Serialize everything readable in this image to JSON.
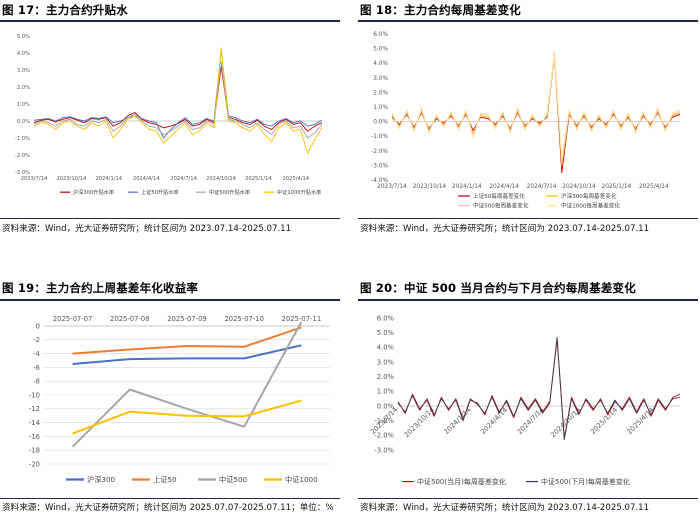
{
  "panels": [
    {
      "title": "图 17：主力合约升贴水",
      "source": "资料来源：Wind，光大证券研究所；统计区间为 2023.07.14-2025.07.11"
    },
    {
      "title": "图 18：主力合约每周基差变化",
      "source": "资料来源：Wind，光大证券研究所；统计区间为 2023.07.14-2025.07.11"
    },
    {
      "title": "图 19：主力合约上周基差年化收益率",
      "source": "资料来源：Wind，光大证券研究所；统计区间为 2025.07.07-2025.07.11；单位：%"
    },
    {
      "title": "图 20：中证 500 当月合约与下月合约每周基差变化",
      "source": "资料来源：Wind，光大证券研究所；统计区间为 2023.07.14-2025.07.11"
    }
  ],
  "chart_data": [
    {
      "type": "line",
      "title": "图 17：主力合约升贴水",
      "yticks": [
        "5.0%",
        "4.0%",
        "3.0%",
        "2.0%",
        "1.0%",
        "0.0%",
        "-1.0%",
        "-2.0%",
        "-3.0%"
      ],
      "ylim": [
        -3,
        5
      ],
      "xticks": [
        "2023/7/14",
        "2023/10/14",
        "2024/1/14",
        "2024/4/14",
        "2024/7/14",
        "2024/10/14",
        "2025/1/14",
        "2025/4/14"
      ],
      "legend_position": "bottom",
      "colors": {
        "沪深300升贴水率": "#c00000",
        "上证50升贴水率": "#4472c4",
        "中证500升贴水率": "#a5a5a5",
        "中证1000升贴水率": "#ffc000"
      },
      "series": [
        {
          "name": "沪深300升贴水率",
          "values": [
            -0.1,
            0.05,
            0.1,
            -0.05,
            0.1,
            0.2,
            0.05,
            -0.1,
            0.15,
            0.1,
            0.2,
            -0.3,
            -0.1,
            0.3,
            0.5,
            0.1,
            -0.1,
            -0.2,
            -0.4,
            -0.3,
            -0.15,
            0.1,
            -0.3,
            -0.2,
            0.1,
            -0.1,
            3.2,
            0.2,
            0.1,
            -0.1,
            -0.2,
            0.05,
            -0.3,
            -0.5,
            -0.1,
            0.1,
            -0.2,
            -0.1,
            -0.6,
            -0.3,
            -0.1
          ]
        },
        {
          "name": "上证50升贴水率",
          "values": [
            0.05,
            0.1,
            0.15,
            0.0,
            0.2,
            0.25,
            0.1,
            0.0,
            0.2,
            0.15,
            0.25,
            -0.1,
            0.0,
            0.2,
            0.3,
            0.15,
            0.0,
            -0.1,
            -1.0,
            -0.5,
            -0.1,
            0.2,
            -0.2,
            -0.1,
            0.15,
            0.0,
            4.2,
            0.3,
            0.2,
            0.0,
            -0.1,
            0.1,
            -0.2,
            -0.3,
            0.0,
            0.15,
            -0.1,
            0.0,
            -0.3,
            -0.2,
            0.05
          ]
        },
        {
          "name": "中证500升贴水率",
          "values": [
            -0.2,
            0.0,
            -0.1,
            -0.3,
            0.0,
            0.1,
            -0.2,
            -0.3,
            0.0,
            -0.1,
            0.1,
            -0.6,
            -0.3,
            0.2,
            0.4,
            0.0,
            -0.3,
            -0.4,
            -0.8,
            -0.6,
            -0.3,
            0.0,
            -0.5,
            -0.4,
            0.0,
            -0.2,
            3.5,
            0.1,
            0.0,
            -0.2,
            -0.4,
            -0.1,
            -0.5,
            -0.8,
            -0.2,
            0.0,
            -0.4,
            -0.3,
            -1.0,
            -0.7,
            -0.2
          ]
        },
        {
          "name": "中证1000升贴水率",
          "values": [
            -0.3,
            -0.1,
            -0.2,
            -0.5,
            -0.1,
            0.0,
            -0.3,
            -0.5,
            -0.1,
            -0.3,
            0.0,
            -1.0,
            -0.5,
            0.1,
            0.3,
            -0.1,
            -0.5,
            -0.6,
            -1.3,
            -0.9,
            -0.5,
            -0.1,
            -0.8,
            -0.6,
            -0.1,
            -0.4,
            4.3,
            0.0,
            -0.1,
            -0.4,
            -0.6,
            -0.2,
            -0.8,
            -1.2,
            -0.4,
            -0.1,
            -0.6,
            -0.5,
            -1.9,
            -1.1,
            -0.4
          ]
        }
      ]
    },
    {
      "type": "line",
      "title": "图 18：主力合约每周基差变化",
      "yticks": [
        "6.0%",
        "5.0%",
        "4.0%",
        "3.0%",
        "2.0%",
        "1.0%",
        "0.0%",
        "-1.0%",
        "-2.0%",
        "-3.0%",
        "-4.0%"
      ],
      "ylim": [
        -4,
        6
      ],
      "xticks": [
        "2023/7/14",
        "2023/10/14",
        "2024/1/14",
        "2024/4/14",
        "2024/7/14",
        "2024/10/14",
        "2025/1/14",
        "2025/4/14"
      ],
      "legend_position": "bottom-left",
      "colors": {
        "上证50每周基差变化": "#c00000",
        "沪深300每周基差变化": "#ffc000",
        "中证500每周基差变化": "#f4b6c2",
        "中证1000每周基差变化": "#ffe699"
      },
      "series": [
        {
          "name": "上证50每周基差变化",
          "values": [
            0.3,
            -0.2,
            0.5,
            -0.4,
            0.6,
            -0.5,
            0.2,
            -0.1,
            0.4,
            -0.3,
            0.5,
            -0.6,
            0.3,
            0.2,
            -0.2,
            0.4,
            -0.5,
            0.6,
            -0.3,
            0.2,
            -0.1,
            0.3,
            4.5,
            -3.5,
            0.5,
            -0.3,
            0.4,
            -0.4,
            0.2,
            -0.2,
            0.5,
            -0.3,
            0.3,
            -0.5,
            0.4,
            -0.2,
            0.6,
            -0.4,
            0.3,
            0.5
          ]
        },
        {
          "name": "沪深300每周基差变化",
          "values": [
            0.4,
            -0.3,
            0.6,
            -0.5,
            0.7,
            -0.6,
            0.3,
            -0.2,
            0.5,
            -0.4,
            0.6,
            -0.8,
            0.4,
            0.3,
            -0.3,
            0.5,
            -0.6,
            0.7,
            -0.4,
            0.3,
            -0.2,
            0.4,
            4.7,
            -3.0,
            0.6,
            -0.4,
            0.5,
            -0.5,
            0.3,
            -0.3,
            0.6,
            -0.4,
            0.4,
            -0.6,
            0.5,
            -0.3,
            0.7,
            -0.5,
            0.4,
            0.6
          ]
        },
        {
          "name": "中证500每周基差变化",
          "values": [
            0.5,
            -0.4,
            0.7,
            -0.6,
            0.8,
            -0.7,
            0.4,
            -0.3,
            0.6,
            -0.5,
            0.7,
            -0.9,
            0.5,
            0.4,
            -0.4,
            0.6,
            -0.7,
            0.8,
            -0.5,
            0.4,
            -0.3,
            0.5,
            4.6,
            -2.8,
            0.7,
            -0.5,
            0.6,
            -0.6,
            0.4,
            -0.4,
            0.7,
            -0.5,
            0.5,
            -0.7,
            0.6,
            -0.4,
            0.8,
            -0.6,
            0.5,
            0.7
          ]
        },
        {
          "name": "中证1000每周基差变化",
          "values": [
            0.6,
            -0.5,
            0.8,
            -0.7,
            1.0,
            -0.8,
            0.5,
            -0.4,
            0.7,
            -0.6,
            0.8,
            -1.1,
            0.6,
            0.5,
            -0.5,
            0.7,
            -0.8,
            1.0,
            -0.6,
            0.5,
            -0.4,
            0.6,
            4.5,
            -2.6,
            0.8,
            -0.6,
            0.7,
            -0.7,
            0.5,
            -0.5,
            0.8,
            -0.6,
            0.6,
            -0.8,
            0.7,
            -0.5,
            1.0,
            -0.7,
            0.6,
            0.8
          ]
        }
      ]
    },
    {
      "type": "line",
      "title": "图 19：主力合约上周基差年化收益率",
      "categories": [
        "2025-07-07",
        "2025-07-08",
        "2025-07-09",
        "2025-07-10",
        "2025-07-11"
      ],
      "yticks": [
        "0",
        "-2",
        "-4",
        "-6",
        "-8",
        "-10",
        "-12",
        "-14",
        "-16",
        "-18",
        "-20"
      ],
      "ylim": [
        -20,
        0
      ],
      "x_axis_position": "top",
      "legend_position": "bottom",
      "colors": {
        "沪深300": "#4472c4",
        "上证50": "#ed7d31",
        "中证500": "#a5a5a5",
        "中证1000": "#ffc000"
      },
      "series": [
        {
          "name": "沪深300",
          "values": [
            -5.5,
            -4.8,
            -4.7,
            -4.7,
            -2.8
          ]
        },
        {
          "name": "上证50",
          "values": [
            -4.0,
            -3.4,
            -2.9,
            -3.0,
            -0.2
          ]
        },
        {
          "name": "中证500",
          "values": [
            -17.5,
            -9.2,
            -12.0,
            -14.6,
            0.6
          ]
        },
        {
          "name": "中证1000",
          "values": [
            -15.6,
            -12.4,
            -13.0,
            -13.1,
            -10.8
          ]
        }
      ]
    },
    {
      "type": "line",
      "title": "图 20：中证 500 当月合约与下月合约每周基差变化",
      "yticks": [
        "6.0%",
        "5.0%",
        "4.0%",
        "3.0%",
        "2.0%",
        "1.0%",
        "0.0%",
        "-1.0%",
        "-2.0%",
        "-3.0%"
      ],
      "ylim": [
        -3,
        6
      ],
      "xticks": [
        "2023/7/14",
        "2023/10/14",
        "2024/1/14",
        "2024/4/14",
        "2024/7/14",
        "2024/10/14",
        "2025/1/14",
        "2025/4/14"
      ],
      "legend_position": "bottom",
      "colors": {
        "中证500(当月)每周基差变化": "#c00000",
        "中证500(下月)每周基差变化": "#3a3a55"
      },
      "series": [
        {
          "name": "中证500(当月)每周基差变化",
          "values": [
            0.3,
            -0.5,
            0.8,
            -0.2,
            0.4,
            -0.7,
            0.6,
            -0.3,
            0.5,
            -0.9,
            0.4,
            0.2,
            -0.6,
            0.7,
            -0.4,
            0.3,
            -0.8,
            0.6,
            -0.2,
            0.5,
            -0.4,
            0.3,
            4.5,
            -2.2,
            0.6,
            -0.5,
            0.4,
            -0.3,
            0.5,
            -0.6,
            0.3,
            -0.2,
            0.6,
            -0.4,
            0.5,
            -0.7,
            0.4,
            -0.3,
            0.6,
            0.8
          ]
        },
        {
          "name": "中证500(下月)每周基差变化",
          "values": [
            0.2,
            -0.4,
            0.7,
            -0.3,
            0.5,
            -0.6,
            0.5,
            -0.2,
            0.4,
            -1.0,
            0.5,
            0.1,
            -0.5,
            0.6,
            -0.5,
            0.4,
            -0.7,
            0.5,
            -0.3,
            0.4,
            -0.5,
            0.2,
            4.7,
            -2.3,
            0.5,
            -0.6,
            0.5,
            -0.2,
            0.4,
            -0.5,
            0.4,
            -0.3,
            0.5,
            -0.5,
            0.4,
            -0.6,
            0.5,
            -0.2,
            0.5,
            0.6
          ]
        }
      ]
    }
  ]
}
